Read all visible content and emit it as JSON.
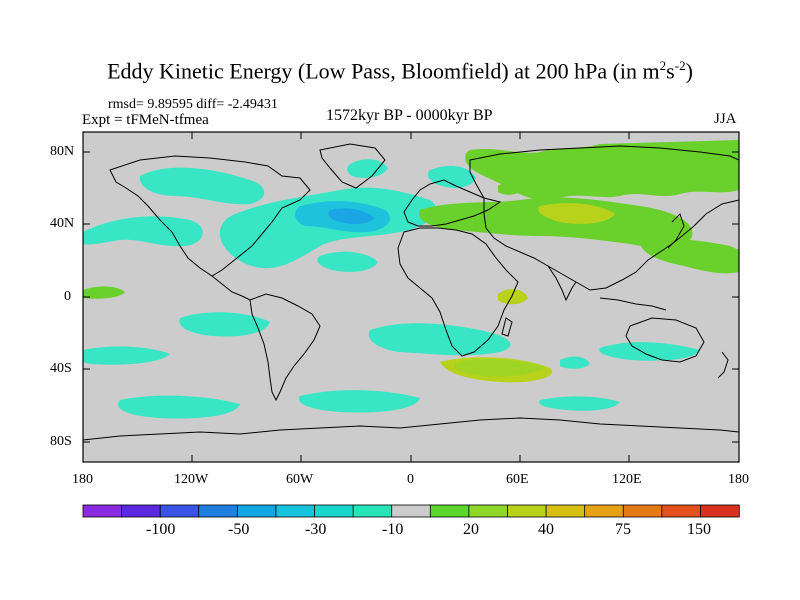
{
  "title": {
    "text": "Eddy Kinetic Energy (Low Pass, Bloomfield) at 200 hPa (in m",
    "sup1": "2",
    "mid": "s",
    "sup2": "-2",
    "end": ")"
  },
  "stats": "rmsd= 9.89595 diff= -2.49431",
  "expt": "Expt = tFMeN-tfmea",
  "period": "1572kyr BP - 0000kyr BP",
  "season": "JJA",
  "lat_ticks": [
    "80N",
    "40N",
    "0",
    "40S",
    "80S"
  ],
  "lon_ticks": [
    "180",
    "120W",
    "60W",
    "0",
    "60E",
    "120E",
    "180"
  ],
  "colorbar": {
    "colors": [
      "#8a2be2",
      "#5a28e0",
      "#3a55e6",
      "#1f7fe0",
      "#12a6e4",
      "#16c2dc",
      "#19d6cc",
      "#26e6b8",
      "#cccccc",
      "#5bd62c",
      "#8ed62a",
      "#b8d21c",
      "#d6c012",
      "#e6a214",
      "#e67a16",
      "#e2521a",
      "#d8321c"
    ],
    "labels": [
      "-100",
      "-50",
      "-30",
      "-10",
      "20",
      "40",
      "75",
      "150"
    ]
  },
  "palette": {
    "background": "#cccccc",
    "cyan_light": "#38e6c6",
    "cyan_mid": "#20c6dc",
    "blue": "#1aa6e4",
    "green_light": "#6ad02c",
    "green_mid": "#8ed62a",
    "yellow_green": "#b8d21c",
    "coast": "#000000"
  }
}
